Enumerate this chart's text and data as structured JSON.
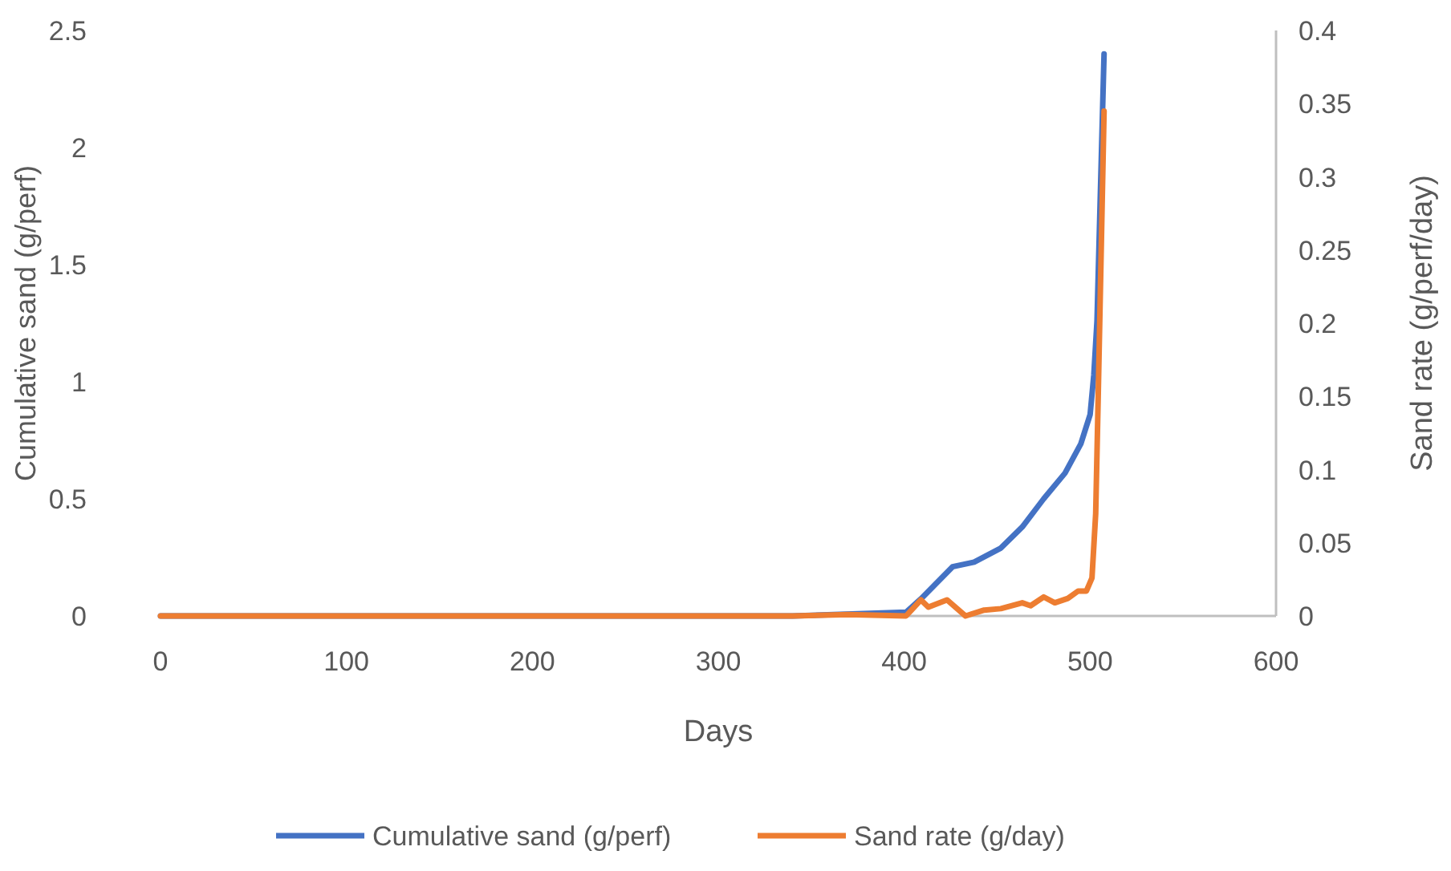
{
  "chart_data": {
    "type": "line",
    "xlabel": "Days",
    "ylabel": "Cumulative sand (g/perf)",
    "y2label": "Sand rate (g/perf/day)",
    "xlim": [
      0,
      600
    ],
    "xticks": [
      0,
      100,
      200,
      300,
      400,
      500,
      600
    ],
    "ylim": [
      0,
      2.5
    ],
    "yticks": [
      0,
      0.5,
      1,
      1.5,
      2,
      2.5
    ],
    "y2lim": [
      0,
      0.4
    ],
    "y2ticks": [
      0,
      0.05,
      0.1,
      0.15,
      0.2,
      0.25,
      0.3,
      0.35,
      0.4
    ],
    "grid": false,
    "legend": "bottom",
    "marker": "none",
    "line_style": "solid",
    "series": [
      {
        "name": "Cumulative sand (g/perf)",
        "color": "#4472c4",
        "x": [
          0,
          340,
          401,
          409,
          426,
          437.6,
          452,
          463.5,
          475,
          486.5,
          495,
          500,
          502,
          503.7,
          507.5
        ],
        "values": [
          0,
          0,
          0.016,
          0.073,
          0.21,
          0.23,
          0.29,
          0.38,
          0.5,
          0.61,
          0.735,
          0.86,
          1.03,
          1.26,
          2.4
        ]
      },
      {
        "name": "Sand rate (g/day)",
        "color": "#ed7d31",
        "axis": "y2",
        "x": [
          0,
          340,
          370,
          401,
          409,
          413,
          423,
          433,
          443,
          452,
          463.5,
          468,
          475,
          481,
          488,
          493.5,
          498,
          501,
          503,
          504.3,
          507.5
        ],
        "values": [
          0,
          0,
          0.001,
          0,
          0.011,
          0.006,
          0.011,
          0,
          0.004,
          0.005,
          0.009,
          0.007,
          0.013,
          0.009,
          0.012,
          0.017,
          0.017,
          0.026,
          0.07,
          0.147,
          0.345
        ]
      }
    ]
  }
}
